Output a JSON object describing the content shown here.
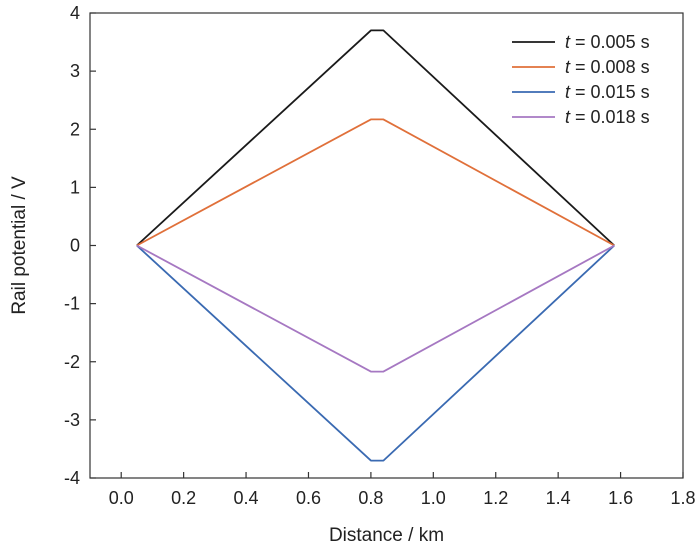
{
  "chart_data": {
    "type": "line",
    "xlabel": "Distance / km",
    "ylabel": "Rail potential / V",
    "xlim": [
      -0.1,
      1.8
    ],
    "ylim": [
      -4,
      4
    ],
    "xticks": [
      0.0,
      0.2,
      0.4,
      0.6,
      0.8,
      1.0,
      1.2,
      1.4,
      1.6,
      1.8
    ],
    "xtick_labels": [
      "0.0",
      "0.2",
      "0.4",
      "0.6",
      "0.8",
      "1.0",
      "1.2",
      "1.4",
      "1.6",
      "1.8"
    ],
    "yticks": [
      -4,
      -3,
      -2,
      -1,
      0,
      1,
      2,
      3,
      4
    ],
    "ytick_labels": [
      "-4",
      "-3",
      "-2",
      "-1",
      "0",
      "1",
      "2",
      "3",
      "4"
    ],
    "grid": false,
    "legend_position": "top-right",
    "series": [
      {
        "name": "0.005 s",
        "name_var": "t",
        "color": "#1a1a1a",
        "x": [
          0.05,
          0.8,
          0.84,
          1.58
        ],
        "y": [
          0,
          3.7,
          3.7,
          0
        ]
      },
      {
        "name": "0.008 s",
        "name_var": "t",
        "color": "#e0703a",
        "x": [
          0.05,
          0.8,
          0.84,
          1.58
        ],
        "y": [
          0,
          2.17,
          2.17,
          0
        ]
      },
      {
        "name": "0.015 s",
        "name_var": "t",
        "color": "#3a6ab2",
        "x": [
          0.05,
          0.8,
          0.84,
          1.58
        ],
        "y": [
          0,
          -3.7,
          -3.7,
          0
        ]
      },
      {
        "name": "0.018 s",
        "name_var": "t",
        "color": "#a678c2",
        "x": [
          0.05,
          0.8,
          0.84,
          1.58
        ],
        "y": [
          0,
          -2.17,
          -2.17,
          0
        ]
      }
    ]
  }
}
